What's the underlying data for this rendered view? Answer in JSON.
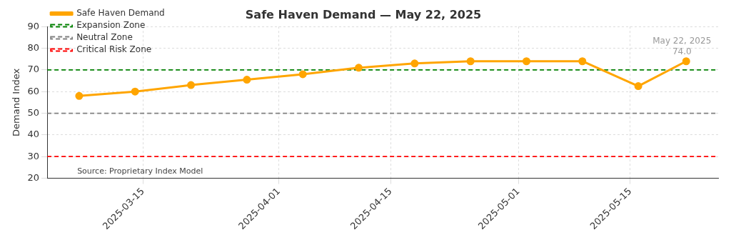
{
  "chart_data": {
    "type": "line",
    "title": "Safe Haven Demand — May 22, 2025",
    "ylabel": "Demand Index",
    "x": [
      "2025-03-07",
      "2025-03-14",
      "2025-03-21",
      "2025-03-28",
      "2025-04-04",
      "2025-04-11",
      "2025-04-18",
      "2025-04-25",
      "2025-05-02",
      "2025-05-09",
      "2025-05-16",
      "2025-05-22"
    ],
    "series": [
      {
        "name": "Safe Haven Demand",
        "color": "#ffa500",
        "values": [
          58,
          60,
          63,
          65.5,
          68,
          71,
          73,
          74,
          74,
          74,
          62.5,
          74
        ]
      }
    ],
    "xlim": [
      "2025-03-03",
      "2025-05-26"
    ],
    "ylim": [
      20,
      90
    ],
    "xticks": [
      "2025-03-15",
      "2025-04-01",
      "2025-04-15",
      "2025-05-01",
      "2025-05-15"
    ],
    "yticks": [
      20,
      30,
      40,
      50,
      60,
      70,
      80,
      90
    ],
    "ref_lines": [
      {
        "axis": "y",
        "value": 70,
        "label": "Expansion Zone",
        "color": "#008000",
        "line_style": "dashed"
      },
      {
        "axis": "y",
        "value": 50,
        "label": "Neutral Zone",
        "color": "#808080",
        "line_style": "dashed"
      },
      {
        "axis": "y",
        "value": 30,
        "label": "Critical Risk Zone",
        "color": "#ff0000",
        "line_style": "dashed"
      }
    ],
    "annotations": [
      {
        "text": "74.0",
        "x": "2025-05-22",
        "y": 74
      },
      {
        "text": "May 22, 2025",
        "x": "2025-05-22",
        "y": 74
      },
      "Source: Proprietary Index Model"
    ],
    "grid": true,
    "legend": "top left",
    "marker": "circle",
    "line_style": "solid"
  }
}
